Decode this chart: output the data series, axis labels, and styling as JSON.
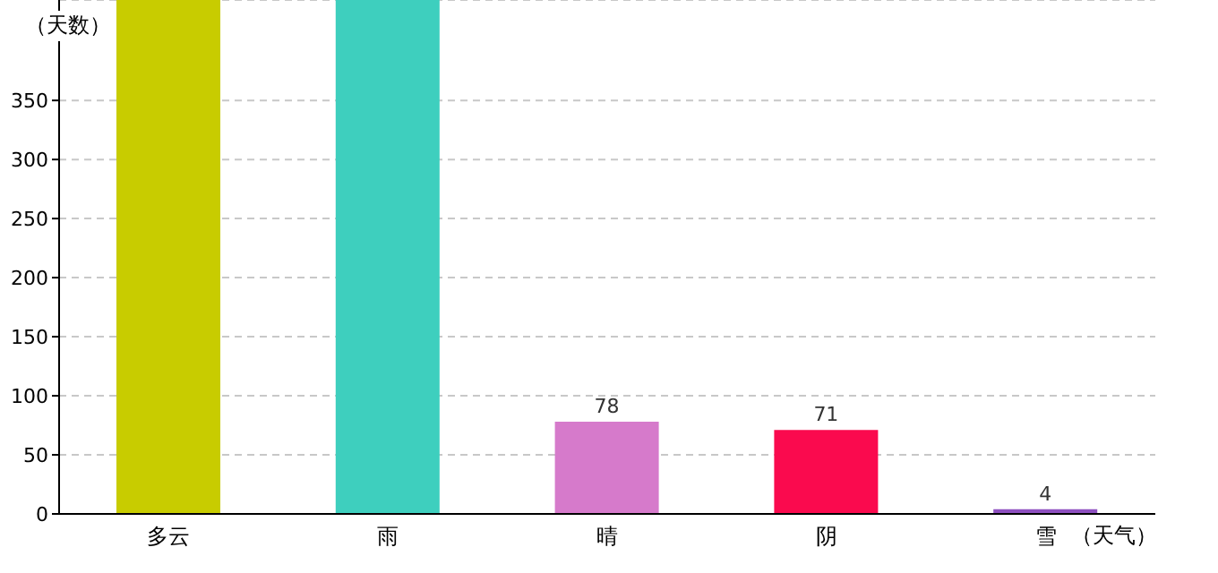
{
  "chart_data": {
    "type": "bar",
    "xlabel": "（天气）",
    "ylabel": "（天数）",
    "categories": [
      "多云",
      "雨",
      "晴",
      "阴",
      "雪"
    ],
    "values": [
      435,
      435,
      78,
      71,
      4
    ],
    "value_labels": [
      null,
      null,
      "78",
      "71",
      "4"
    ],
    "colors": [
      "#c8cc00",
      "#3ecfbe",
      "#d67acb",
      "#fa0a4e",
      "#8e50c0"
    ],
    "ylim": [
      0,
      435
    ],
    "yticks": [
      0,
      50,
      100,
      150,
      200,
      250,
      300,
      350
    ],
    "grid": "y"
  }
}
